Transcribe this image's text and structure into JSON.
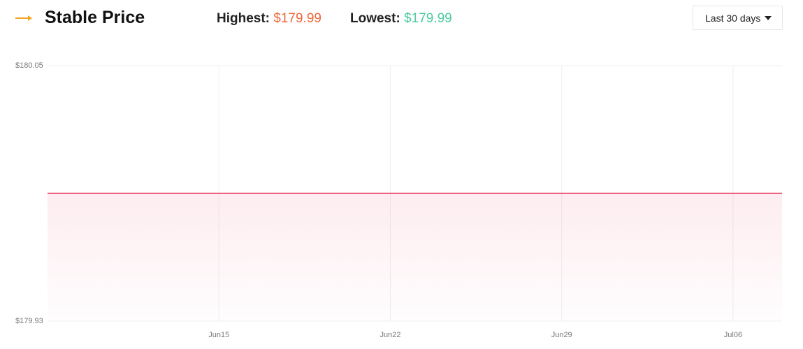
{
  "header": {
    "title": "Stable Price",
    "highest_label": "Highest:",
    "highest_value": "$179.99",
    "lowest_label": "Lowest:",
    "lowest_value": "$179.99",
    "range_select": "Last 30 days"
  },
  "chart_data": {
    "type": "line",
    "x": [
      0,
      30
    ],
    "values": [
      179.99,
      179.99
    ],
    "color": "#e8335a",
    "xlim": [
      0,
      30
    ],
    "xticks": [
      {
        "value": 7,
        "label": "Jun15"
      },
      {
        "value": 14,
        "label": "Jun22"
      },
      {
        "value": 21,
        "label": "Jun29"
      },
      {
        "value": 28,
        "label": "Jul06"
      }
    ],
    "ylim": [
      179.93,
      180.05
    ],
    "yticks": [
      {
        "value": 179.93,
        "label": "$179.93"
      },
      {
        "value": 180.05,
        "label": "$180.05"
      }
    ],
    "grid": true,
    "area": true
  }
}
